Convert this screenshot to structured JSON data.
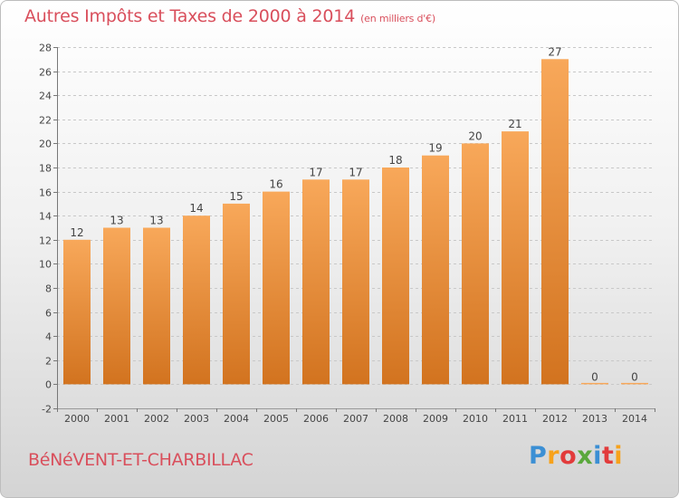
{
  "header": {
    "title": "Autres Impôts et Taxes de 2000 à 2014",
    "subtitle": "(en milliers d'€)"
  },
  "footer": {
    "commune": "BéNéVENT-ET-CHARBILLAC",
    "brand_letters": [
      "P",
      "r",
      "o",
      "x",
      "i",
      "t",
      "i"
    ],
    "brand_colors": [
      "#3b8fd4",
      "#f7a21b",
      "#e23b3b",
      "#5aa83c",
      "#3b8fd4",
      "#e23b3b",
      "#f7a21b"
    ]
  },
  "colors": {
    "bar_light": "#f8a85a",
    "bar_dark": "#d2731f",
    "grid": "#c8c8c8",
    "title": "#d94f5c"
  },
  "chart_data": {
    "type": "bar",
    "title": "Autres Impôts et Taxes de 2000 à 2014",
    "subtitle": "(en milliers d'€)",
    "categories": [
      "2000",
      "2001",
      "2002",
      "2003",
      "2004",
      "2005",
      "2006",
      "2007",
      "2008",
      "2009",
      "2010",
      "2011",
      "2012",
      "2013",
      "2014"
    ],
    "values": [
      12,
      13,
      13,
      14,
      15,
      16,
      17,
      17,
      18,
      19,
      20,
      21,
      27,
      0,
      0
    ],
    "ylim": [
      -2,
      28
    ],
    "yticks": [
      -2,
      0,
      2,
      4,
      6,
      8,
      10,
      12,
      14,
      16,
      18,
      20,
      22,
      24,
      26,
      28
    ],
    "grid": true,
    "xlabel": "",
    "ylabel": ""
  }
}
